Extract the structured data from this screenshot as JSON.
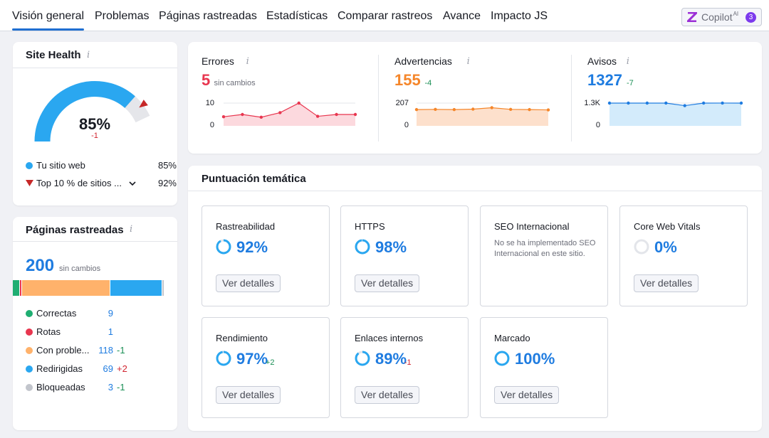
{
  "nav": {
    "tabs": [
      {
        "label": "Visión general"
      },
      {
        "label": "Problemas"
      },
      {
        "label": "Páginas rastreadas"
      },
      {
        "label": "Estadísticas"
      },
      {
        "label": "Comparar rastreos"
      },
      {
        "label": "Avance"
      },
      {
        "label": "Impacto JS"
      }
    ],
    "copilot": {
      "label": "Copilot",
      "sup": "AI",
      "badge": "3"
    }
  },
  "site_health": {
    "title": "Site Health",
    "info_icon": "i",
    "value": "85%",
    "delta": "-1",
    "gauge_fraction": 0.85,
    "legend": [
      {
        "label": "Tu sitio web",
        "value": "85%",
        "icon": "circle",
        "color": "#2aa7f0"
      },
      {
        "label": "Top 10 % de sitios ...",
        "value": "92%",
        "icon": "triangle-down",
        "color": "#c62828",
        "dropdown_icon": "chevron-down-icon"
      }
    ]
  },
  "crawled": {
    "title": "Páginas rastreadas",
    "info_icon": "i",
    "count": "200",
    "count_note": "sin cambios",
    "rows": [
      {
        "label": "Correctas",
        "value": "9",
        "delta": "",
        "color": "#1fae72"
      },
      {
        "label": "Rotas",
        "value": "1",
        "delta": "",
        "color": "#e8364f"
      },
      {
        "label": "Con proble...",
        "value": "118",
        "delta": "-1",
        "delta_color": "#1a8f55",
        "color": "#ffb26b"
      },
      {
        "label": "Redirigidas",
        "value": "69",
        "delta": "+2",
        "delta_color": "#d1242f",
        "color": "#2aa7f0"
      },
      {
        "label": "Bloqueadas",
        "value": "3",
        "delta": "-1",
        "delta_color": "#1a8f55",
        "color": "#c2c5cc"
      }
    ]
  },
  "metrics": [
    {
      "label": "Errores",
      "value": "5",
      "delta": "sin cambios",
      "color": "#e8364f",
      "delta_color": "#6c6e79",
      "axis_top": "10",
      "axis_bottom": "0",
      "info_icon": "i"
    },
    {
      "label": "Advertencias",
      "value": "155",
      "delta": "-4",
      "color": "#f5862a",
      "delta_color": "#1a8f55",
      "axis_top": "207",
      "axis_bottom": "0",
      "info_icon": "i"
    },
    {
      "label": "Avisos",
      "value": "1327",
      "delta": "-7",
      "color": "#1f7ce0",
      "delta_color": "#1a8f55",
      "axis_top": "1.3K",
      "axis_bottom": "0",
      "info_icon": "i"
    }
  ],
  "thematic": {
    "title": "Puntuación temática",
    "button_label": "Ver detalles",
    "cards": [
      {
        "name": "Rastreabilidad",
        "pct": "92%",
        "fraction": 0.92,
        "delta": ""
      },
      {
        "name": "HTTPS",
        "pct": "98%",
        "fraction": 0.98,
        "delta": ""
      },
      {
        "name": "SEO Internacional",
        "pct": "",
        "note": "No se ha implementado SEO Internacional en este sitio.",
        "delta": ""
      },
      {
        "name": "Core Web Vitals",
        "pct": "0%",
        "fraction": 0.0,
        "delta": ""
      },
      {
        "name": "Rendimiento",
        "pct": "97%",
        "fraction": 0.97,
        "delta": "+2",
        "delta_color": "#1a8f55"
      },
      {
        "name": "Enlaces internos",
        "pct": "89%",
        "fraction": 0.89,
        "delta": "-1",
        "delta_color": "#d1242f"
      },
      {
        "name": "Marcado",
        "pct": "100%",
        "fraction": 1.0,
        "delta": ""
      }
    ]
  }
}
